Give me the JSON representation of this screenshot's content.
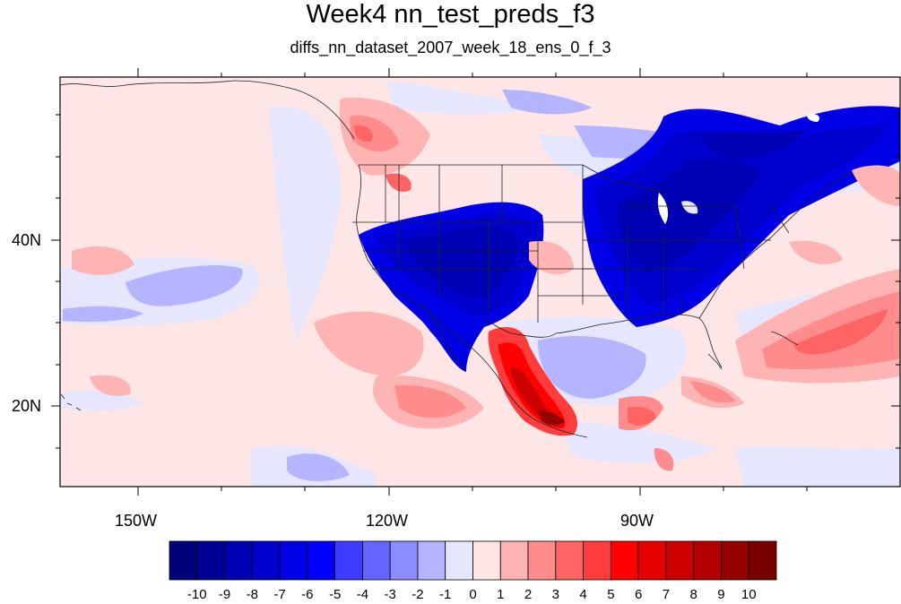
{
  "title": "Week4 nn_test_preds_f3",
  "subtitle": "diffs_nn_dataset_2007_week_18_ens_0_f_3",
  "lon_labels": [
    "150W",
    "120W",
    "90W"
  ],
  "lat_labels": [
    "40N",
    "20N"
  ],
  "colorbar": {
    "labels": [
      "-10",
      "-9",
      "-8",
      "-7",
      "-6",
      "-5",
      "-4",
      "-3",
      "-2",
      "-1",
      "0",
      "1",
      "2",
      "3",
      "4",
      "5",
      "6",
      "7",
      "8",
      "9",
      "10"
    ],
    "colors": [
      "#00007a",
      "#000096",
      "#0000b4",
      "#0000cc",
      "#0000e6",
      "#0000ff",
      "#3c3cff",
      "#6464ff",
      "#8c8cff",
      "#b4b4ff",
      "#e6e6ff",
      "#ffe6e6",
      "#ffb4b4",
      "#ff8c8c",
      "#ff6464",
      "#ff3c3c",
      "#ff0000",
      "#e60000",
      "#cc0000",
      "#b40000",
      "#960000",
      "#7a0000"
    ]
  }
}
